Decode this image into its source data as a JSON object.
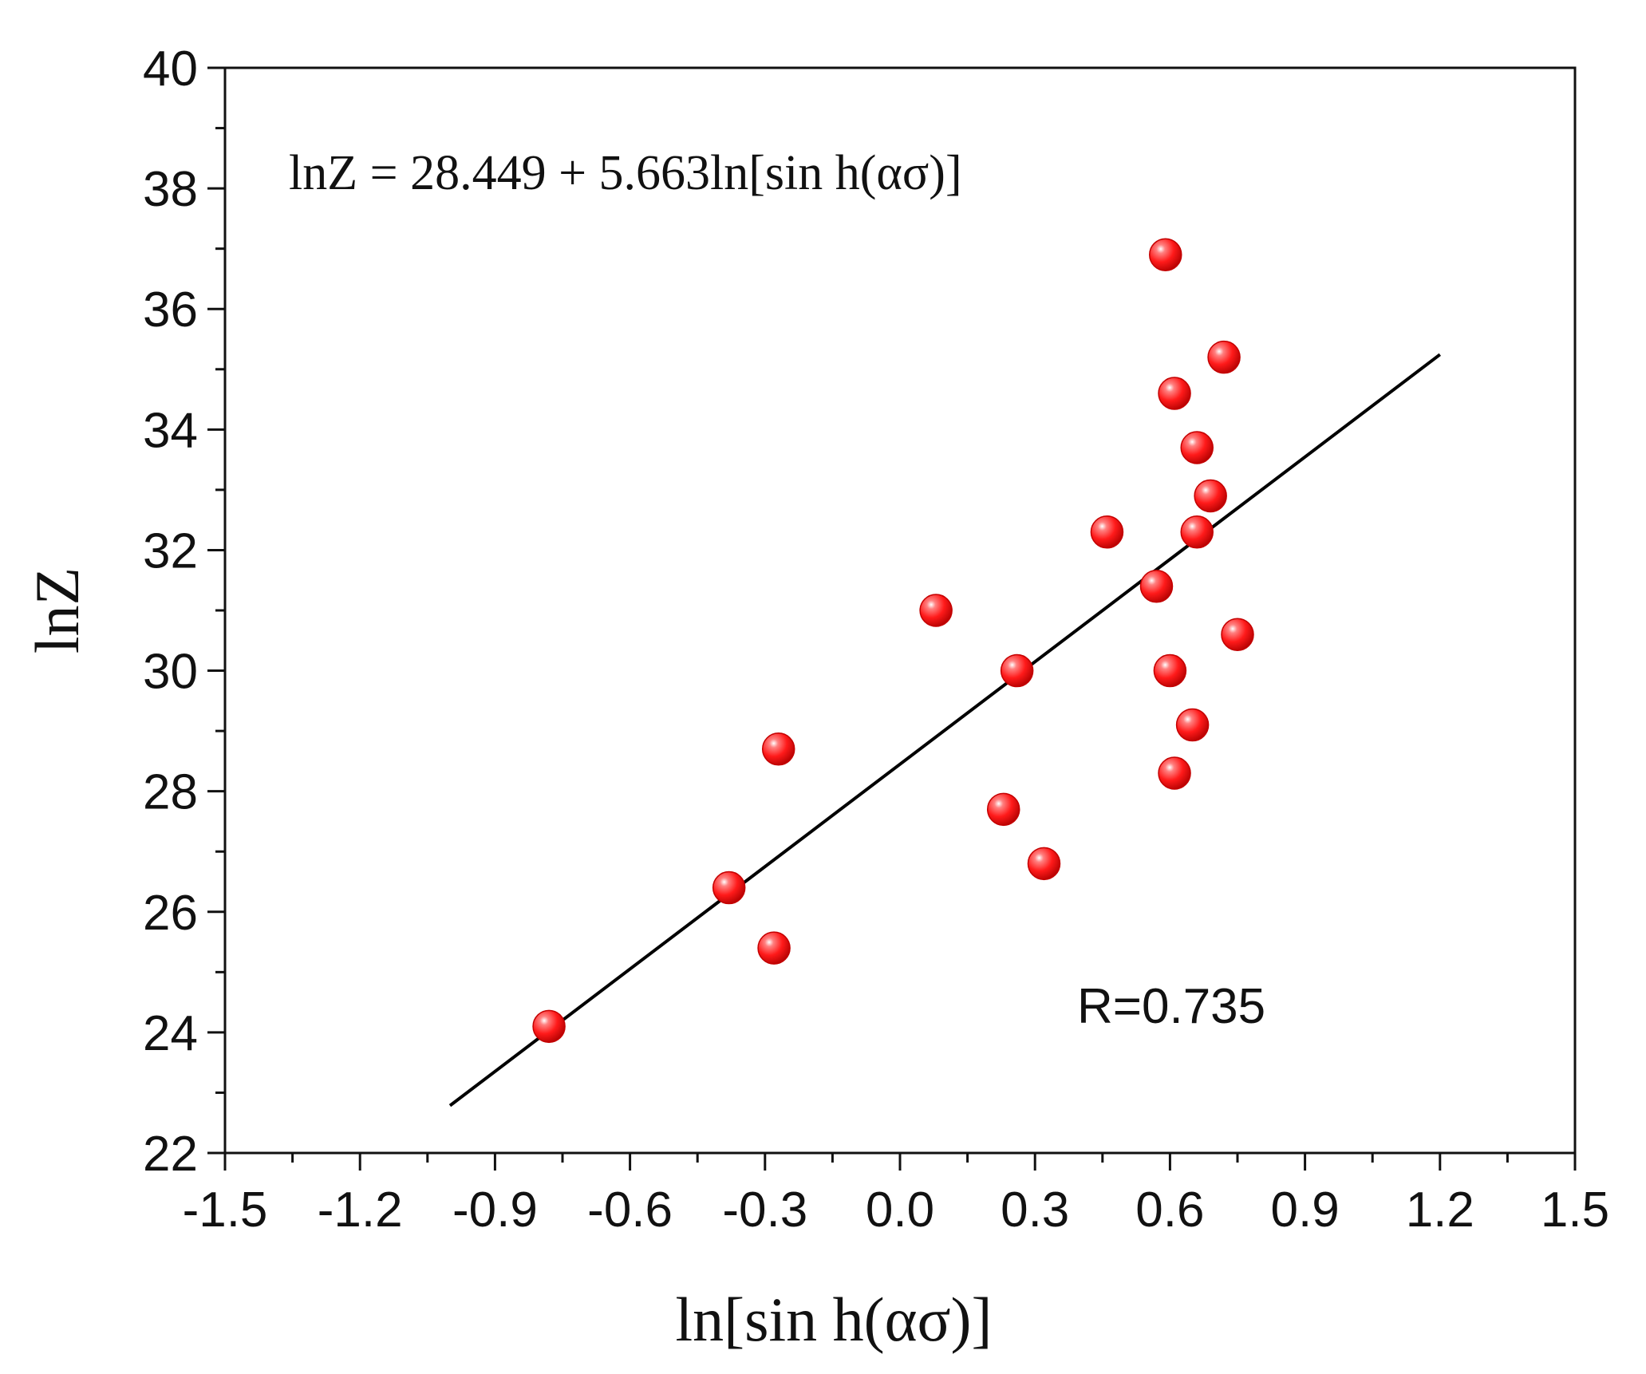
{
  "chart_data": {
    "type": "scatter",
    "title": "",
    "xlabel": "ln[sin h(ασ)]",
    "ylabel": "lnZ",
    "xlim": [
      -1.5,
      1.5
    ],
    "ylim": [
      22,
      40
    ],
    "xticks": [
      "-1.5",
      "-1.2",
      "-0.9",
      "-0.6",
      "-0.3",
      "0.0",
      "0.3",
      "0.6",
      "0.9",
      "1.2",
      "1.5"
    ],
    "yticks": [
      "22",
      "24",
      "26",
      "28",
      "30",
      "32",
      "34",
      "36",
      "38",
      "40"
    ],
    "grid": false,
    "series": [
      {
        "name": "data",
        "color": "#ff1a1a",
        "points": [
          {
            "x": -0.78,
            "y": 24.1
          },
          {
            "x": -0.38,
            "y": 26.4
          },
          {
            "x": -0.28,
            "y": 25.4
          },
          {
            "x": -0.27,
            "y": 28.7
          },
          {
            "x": 0.08,
            "y": 31.0
          },
          {
            "x": 0.23,
            "y": 27.7
          },
          {
            "x": 0.26,
            "y": 30.0
          },
          {
            "x": 0.32,
            "y": 26.8
          },
          {
            "x": 0.46,
            "y": 32.3
          },
          {
            "x": 0.57,
            "y": 31.4
          },
          {
            "x": 0.59,
            "y": 36.9
          },
          {
            "x": 0.6,
            "y": 30.0
          },
          {
            "x": 0.61,
            "y": 28.3
          },
          {
            "x": 0.61,
            "y": 34.6
          },
          {
            "x": 0.65,
            "y": 29.1
          },
          {
            "x": 0.66,
            "y": 33.7
          },
          {
            "x": 0.66,
            "y": 32.3
          },
          {
            "x": 0.69,
            "y": 32.9
          },
          {
            "x": 0.72,
            "y": 35.2
          },
          {
            "x": 0.75,
            "y": 30.6
          }
        ]
      }
    ],
    "fit_line": {
      "intercept": 28.449,
      "slope": 5.663,
      "x_range": [
        -1.0,
        1.2
      ],
      "color": "#000000"
    },
    "annotations": {
      "equation": "lnZ = 28.449 + 5.663ln[sin h(ασ)]",
      "r_value": "R=0.735"
    }
  }
}
